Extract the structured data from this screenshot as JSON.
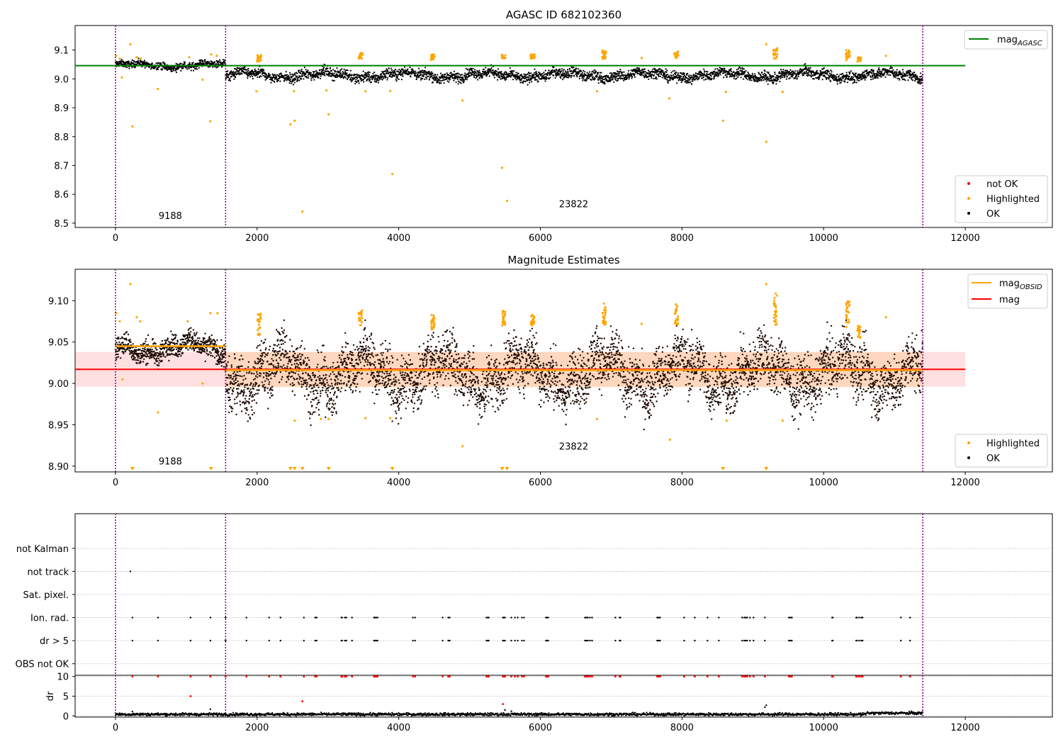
{
  "chart_data": [
    {
      "type": "scatter",
      "title": "AGASC ID 682102360",
      "xlim": [
        -570,
        13230
      ],
      "ylim": [
        8.485,
        9.185
      ],
      "xticks": [
        0,
        2000,
        4000,
        6000,
        8000,
        10000,
        12000
      ],
      "xtick_labels": [
        "0",
        "2000",
        "4000",
        "6000",
        "8000",
        "10000",
        "12000"
      ],
      "yticks": [
        8.5,
        8.6,
        8.7,
        8.8,
        8.9,
        9.0,
        9.1
      ],
      "ytick_labels": [
        "8.5",
        "8.6",
        "8.7",
        "8.8",
        "8.9",
        "9.0",
        "9.1"
      ],
      "obs_boundaries": [
        0,
        1555,
        11400
      ],
      "obs_labels": [
        {
          "x": 775,
          "y": 8.515,
          "text": "9188"
        },
        {
          "x": 6470,
          "y": 8.555,
          "text": "23822"
        }
      ],
      "mag_agasc": 9.046,
      "obs_levels": [
        {
          "x0": 0,
          "x1": 1555,
          "level": 9.047,
          "spread": 0.011
        },
        {
          "x0": 1555,
          "x1": 11400,
          "level": 9.013,
          "spread": 0.016
        }
      ],
      "highlighted_points": [
        [
          8,
          9.08
        ],
        [
          60,
          9.07
        ],
        [
          90,
          9.005
        ],
        [
          210,
          9.12
        ],
        [
          240,
          8.835
        ],
        [
          300,
          9.075
        ],
        [
          360,
          9.07
        ],
        [
          600,
          8.965
        ],
        [
          1040,
          9.075
        ],
        [
          1230,
          8.997
        ],
        [
          1340,
          8.853
        ],
        [
          1350,
          9.085
        ],
        [
          1430,
          9.08
        ],
        [
          1990,
          8.957
        ],
        [
          2470,
          8.842
        ],
        [
          2530,
          8.855
        ],
        [
          2520,
          8.957
        ],
        [
          2640,
          8.54
        ],
        [
          2980,
          8.96
        ],
        [
          3010,
          8.877
        ],
        [
          3470,
          9.09
        ],
        [
          3530,
          8.957
        ],
        [
          3880,
          8.958
        ],
        [
          3910,
          8.67
        ],
        [
          4900,
          8.925
        ],
        [
          5460,
          8.692
        ],
        [
          5530,
          8.577
        ],
        [
          6800,
          8.957
        ],
        [
          7430,
          9.072
        ],
        [
          7820,
          8.932
        ],
        [
          8580,
          8.855
        ],
        [
          8620,
          8.955
        ],
        [
          9190,
          9.12
        ],
        [
          9190,
          8.782
        ],
        [
          9420,
          8.955
        ],
        [
          10320,
          9.065
        ],
        [
          10880,
          9.08
        ]
      ],
      "highlighted_clusters": [
        {
          "x": 2030,
          "top": 9.085,
          "bottom": 9.055
        },
        {
          "x": 3460,
          "top": 9.09,
          "bottom": 9.07
        },
        {
          "x": 4480,
          "top": 9.085,
          "bottom": 9.065
        },
        {
          "x": 5480,
          "top": 9.085,
          "bottom": 9.07
        },
        {
          "x": 5890,
          "top": 9.085,
          "bottom": 9.07
        },
        {
          "x": 6900,
          "top": 9.1,
          "bottom": 9.065
        },
        {
          "x": 7920,
          "top": 9.095,
          "bottom": 9.07
        },
        {
          "x": 9320,
          "top": 9.11,
          "bottom": 9.07
        },
        {
          "x": 10340,
          "top": 9.1,
          "bottom": 9.07
        },
        {
          "x": 10500,
          "top": 9.075,
          "bottom": 9.06
        }
      ],
      "legend_top": {
        "position": "top-right",
        "entries": [
          {
            "label": "mag",
            "sub": "AGASC",
            "color": "#008000",
            "kind": "line"
          }
        ]
      },
      "legend_bottom": {
        "position": "lower-right",
        "entries": [
          {
            "label": "not OK",
            "color": "#ff0000",
            "kind": "dot"
          },
          {
            "label": "Highlighted",
            "color": "#ffa500",
            "kind": "dot"
          },
          {
            "label": "OK",
            "color": "#000000",
            "kind": "dot"
          }
        ]
      }
    },
    {
      "type": "scatter",
      "title": "Magnitude Estimates",
      "xlim": [
        -570,
        13230
      ],
      "ylim": [
        8.893,
        9.138
      ],
      "xticks": [
        0,
        2000,
        4000,
        6000,
        8000,
        10000,
        12000
      ],
      "xtick_labels": [
        "0",
        "2000",
        "4000",
        "6000",
        "8000",
        "10000",
        "12000"
      ],
      "yticks": [
        8.9,
        8.95,
        9.0,
        9.05,
        9.1
      ],
      "ytick_labels": [
        "8.90",
        "8.95",
        "9.00",
        "9.05",
        "9.10"
      ],
      "obs_boundaries": [
        0,
        1555,
        11400
      ],
      "obs_labels": [
        {
          "x": 775,
          "y": 8.902,
          "text": "9188"
        },
        {
          "x": 6470,
          "y": 8.92,
          "text": "23822"
        }
      ],
      "mag": 9.017,
      "mag_band": [
        8.996,
        9.038
      ],
      "mag_obsid": [
        {
          "x0": 0,
          "x1": 1555,
          "level": 9.045
        },
        {
          "x0": 1555,
          "x1": 11400,
          "level": 9.016
        }
      ],
      "obsid_bands": [
        {
          "x0": 1555,
          "x1": 11400,
          "lo": 8.995,
          "hi": 9.038
        }
      ],
      "highlighted_points": [
        [
          8,
          9.085
        ],
        [
          60,
          9.075
        ],
        [
          100,
          9.005
        ],
        [
          210,
          9.12
        ],
        [
          300,
          9.08
        ],
        [
          350,
          9.075
        ],
        [
          600,
          8.965
        ],
        [
          1020,
          9.075
        ],
        [
          1230,
          9.0
        ],
        [
          1340,
          9.085
        ],
        [
          1440,
          9.085
        ],
        [
          2530,
          8.955
        ],
        [
          2900,
          8.957
        ],
        [
          3010,
          8.957
        ],
        [
          3530,
          8.958
        ],
        [
          3880,
          8.958
        ],
        [
          4900,
          8.924
        ],
        [
          6800,
          8.957
        ],
        [
          7430,
          9.072
        ],
        [
          7830,
          8.932
        ],
        [
          8630,
          8.955
        ],
        [
          9190,
          9.12
        ],
        [
          9420,
          8.955
        ],
        [
          10880,
          9.08
        ],
        [
          10320,
          9.068
        ]
      ],
      "highlighted_clusters": [
        {
          "x": 2030,
          "top": 9.085,
          "bottom": 9.055
        },
        {
          "x": 3460,
          "top": 9.09,
          "bottom": 9.07
        },
        {
          "x": 4480,
          "top": 9.083,
          "bottom": 9.065
        },
        {
          "x": 5480,
          "top": 9.088,
          "bottom": 9.07
        },
        {
          "x": 5890,
          "top": 9.083,
          "bottom": 9.07
        },
        {
          "x": 6900,
          "top": 9.097,
          "bottom": 9.07
        },
        {
          "x": 7920,
          "top": 9.097,
          "bottom": 9.07
        },
        {
          "x": 9320,
          "top": 9.11,
          "bottom": 9.07
        },
        {
          "x": 10340,
          "top": 9.1,
          "bottom": 9.07
        },
        {
          "x": 10500,
          "top": 9.07,
          "bottom": 9.055
        }
      ],
      "offscale_x": [
        240,
        1350,
        2470,
        2530,
        2640,
        3010,
        3910,
        5460,
        5530,
        8580,
        9190
      ],
      "legend_top": {
        "position": "top-right",
        "entries": [
          {
            "label": "mag",
            "sub": "OBSID",
            "color": "#ffa500",
            "kind": "line"
          },
          {
            "label": "mag",
            "sub": "",
            "color": "#ff0000",
            "kind": "line"
          }
        ]
      },
      "legend_bottom": {
        "position": "lower-right",
        "entries": [
          {
            "label": "Highlighted",
            "color": "#ffa500",
            "kind": "dot"
          },
          {
            "label": "OK",
            "color": "#000000",
            "kind": "dot"
          }
        ]
      }
    },
    {
      "type": "scatter",
      "title": "",
      "xlim": [
        -570,
        13230
      ],
      "flags_ylim": [
        -0.5,
        6.5
      ],
      "flag_labels": [
        "OBS not OK",
        "dr > 5",
        "Ion. rad.",
        "Sat. pixel.",
        "not track",
        "not Kalman"
      ],
      "obs_boundaries": [
        0,
        1555,
        11400
      ],
      "flag_events": [
        {
          "flag": "not track",
          "xs": [
            210
          ]
        },
        {
          "flag": "Ion. rad.",
          "xs": [
            240,
            600,
            1060,
            1340,
            1555,
            1850,
            2170,
            2330,
            2660,
            2820,
            2840,
            3190,
            3200,
            3240,
            3260,
            3340,
            3650,
            3660,
            3680,
            3700,
            4200,
            4230,
            4620,
            4700,
            4720,
            5240,
            5260,
            5270,
            5470,
            5480,
            5500,
            5590,
            5640,
            5680,
            5740,
            5770,
            6080,
            6090,
            6110,
            6630,
            6650,
            6670,
            6700,
            6730,
            7060,
            7120,
            7130,
            7650,
            7670,
            7690,
            8030,
            8180,
            8360,
            8520,
            8850,
            8880,
            8900,
            8920,
            8960,
            9010,
            9170,
            9510,
            9530,
            9550,
            10120,
            10130,
            10460,
            10470,
            10500,
            10530,
            10550,
            11090,
            11220
          ]
        },
        {
          "flag": "dr > 5",
          "xs": [
            240,
            600,
            1060,
            1340,
            1555,
            1850,
            2170,
            2330,
            2660,
            2820,
            2840,
            3190,
            3200,
            3240,
            3260,
            3340,
            3650,
            3660,
            3680,
            3700,
            4200,
            4230,
            4620,
            4700,
            4720,
            5240,
            5260,
            5270,
            5470,
            5480,
            5500,
            5590,
            5640,
            5680,
            5740,
            5770,
            6080,
            6090,
            6110,
            6630,
            6650,
            6670,
            6700,
            6730,
            7060,
            7120,
            7130,
            7650,
            7670,
            7690,
            8030,
            8180,
            8360,
            8520,
            8850,
            8880,
            8900,
            8920,
            8960,
            9010,
            9170,
            9510,
            9530,
            9550,
            10120,
            10130,
            10460,
            10470,
            10500,
            10530,
            10550,
            11090,
            11220
          ]
        }
      ]
    },
    {
      "type": "scatter",
      "title": "",
      "ylabel": "dr",
      "xlim": [
        -570,
        13230
      ],
      "ylim": [
        -0.3,
        10.3
      ],
      "yticks": [
        0,
        5,
        10
      ],
      "ytick_labels": [
        "0",
        "5",
        "10"
      ],
      "xticks": [
        0,
        2000,
        4000,
        6000,
        8000,
        10000,
        12000
      ],
      "xtick_labels": [
        "0",
        "2000",
        "4000",
        "6000",
        "8000",
        "10000",
        "12000"
      ],
      "obs_boundaries": [
        0,
        1555,
        11400
      ],
      "baseline_dr": 0.4,
      "not_ok_capped_xs": [
        240,
        600,
        1060,
        1340,
        1555,
        1850,
        2170,
        2330,
        2660,
        2820,
        2840,
        3190,
        3200,
        3240,
        3260,
        3340,
        3650,
        3660,
        3680,
        3700,
        4200,
        4230,
        4620,
        4700,
        4720,
        5240,
        5260,
        5270,
        5470,
        5480,
        5500,
        5590,
        5640,
        5680,
        5740,
        5770,
        6080,
        6090,
        6110,
        6630,
        6650,
        6670,
        6700,
        6730,
        7060,
        7120,
        7130,
        7650,
        7670,
        7690,
        8030,
        8180,
        8360,
        8520,
        8850,
        8880,
        8900,
        8920,
        8960,
        9010,
        9170,
        9510,
        9530,
        9550,
        10120,
        10130,
        10460,
        10470,
        10500,
        10530,
        10550,
        11090,
        11220
      ],
      "not_ok_points": [
        [
          1060,
          5.0
        ],
        [
          2640,
          3.7
        ],
        [
          5470,
          3.0
        ]
      ],
      "ok_outliers": [
        [
          1340,
          1.7
        ],
        [
          5500,
          1.5
        ],
        [
          5590,
          1.2
        ],
        [
          9190,
          2.7
        ],
        [
          9170,
          2.2
        ],
        [
          240,
          1.1
        ]
      ]
    }
  ]
}
